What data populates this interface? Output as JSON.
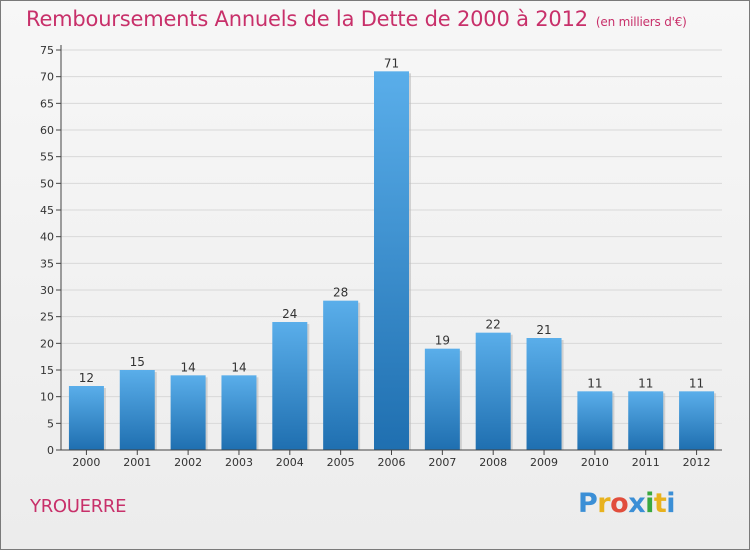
{
  "title": "Remboursements Annuels de la Dette de 2000 à 2012",
  "subtitle": "(en milliers d'€)",
  "city": "YROUERRE",
  "brand": {
    "letters": [
      "P",
      "r",
      "o",
      "x",
      "i",
      "t",
      "i"
    ],
    "colors": [
      "#3b8fd6",
      "#e8b21e",
      "#e14d3c",
      "#3b8fd6",
      "#3aa83f",
      "#e8b21e",
      "#3b8fd6"
    ]
  },
  "colors": {
    "accent": "#c8306a",
    "bar_top": "#5aaeea",
    "bar_bottom": "#1f6fb0",
    "axis": "#444444",
    "grid": "#d8d8d8"
  },
  "chart_data": {
    "type": "bar",
    "categories": [
      "2000",
      "2001",
      "2002",
      "2003",
      "2004",
      "2005",
      "2006",
      "2007",
      "2008",
      "2009",
      "2010",
      "2011",
      "2012"
    ],
    "values": [
      12,
      15,
      14,
      14,
      24,
      28,
      71,
      19,
      22,
      21,
      11,
      11,
      11
    ],
    "ylim": [
      0,
      75
    ],
    "yticks": [
      0,
      5,
      10,
      15,
      20,
      25,
      30,
      35,
      40,
      45,
      50,
      55,
      60,
      65,
      70,
      75
    ],
    "grid": true,
    "data_labels": true
  }
}
